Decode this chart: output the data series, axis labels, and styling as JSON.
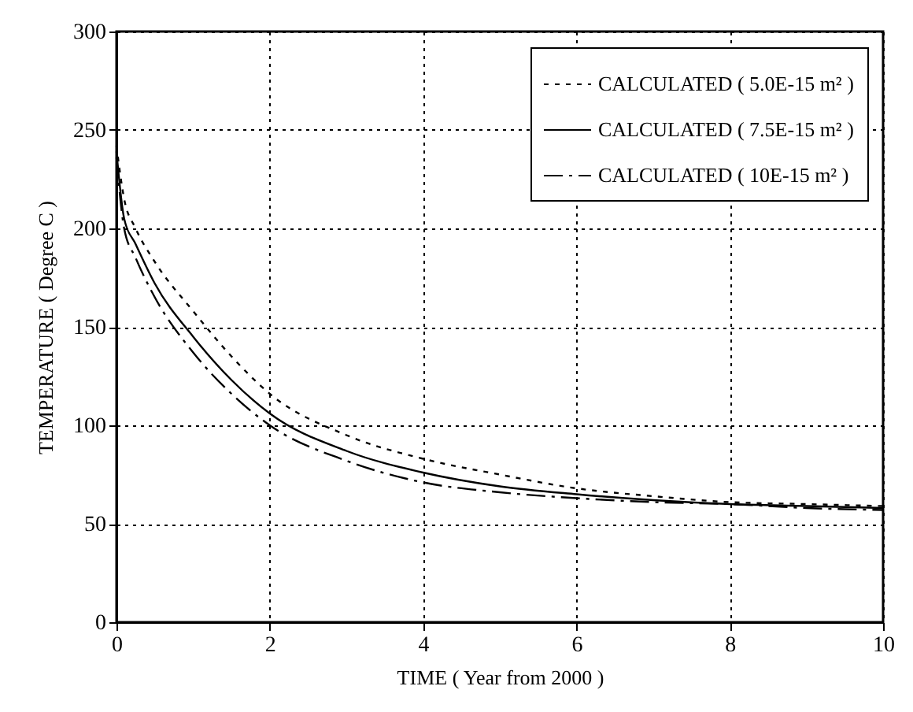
{
  "chart_data": {
    "type": "line",
    "xlabel": "TIME ( Year from 2000 )",
    "ylabel": "TEMPERATURE ( Degree C )",
    "x": [
      0,
      0.1,
      0.25,
      0.5,
      1,
      1.5,
      2,
      3,
      4,
      5,
      6,
      7,
      8,
      9,
      10
    ],
    "series": [
      {
        "name": "CALCULATED ( 5.0E-15 m² )",
        "color": "#000000",
        "line_style": "dotted",
        "values": [
          242,
          215,
          200,
          183,
          158,
          135,
          116,
          95,
          83,
          75,
          68,
          64,
          61,
          60,
          59
        ]
      },
      {
        "name": "CALCULATED ( 7.5E-15 m² )",
        "color": "#000000",
        "line_style": "solid",
        "values": [
          239,
          205,
          192,
          172,
          145,
          123,
          106,
          87,
          76,
          69,
          65,
          62,
          60,
          59,
          58
        ]
      },
      {
        "name": "CALCULATED ( 10E-15 m² )",
        "color": "#000000",
        "line_style": "dashed",
        "values": [
          236,
          200,
          185,
          165,
          137,
          116,
          100,
          82,
          71,
          66,
          63,
          61,
          60,
          58,
          57
        ]
      }
    ],
    "xlim": [
      0,
      10
    ],
    "xticks": [
      0,
      2,
      4,
      6,
      8,
      10
    ],
    "ylim": [
      0,
      300
    ],
    "yticks": [
      0,
      50,
      100,
      150,
      200,
      250,
      300
    ],
    "grid": true,
    "legend": "top right",
    "marker": "none"
  }
}
